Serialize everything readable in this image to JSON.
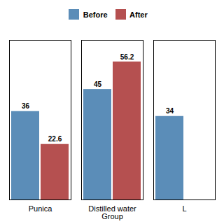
{
  "chart_data": {
    "type": "bar",
    "categories": [
      "Punica",
      "Distilled water\nGroup",
      "L"
    ],
    "series": [
      {
        "name": "Before",
        "color": "#5B8DB8",
        "values": [
          36,
          45,
          34
        ]
      },
      {
        "name": "After",
        "color": "#B55050",
        "values": [
          22.6,
          56.2,
          null
        ]
      }
    ],
    "ylim": [
      0,
      65
    ],
    "legend": "top",
    "data_labels": true,
    "tick_labels": "x",
    "grid": false
  }
}
